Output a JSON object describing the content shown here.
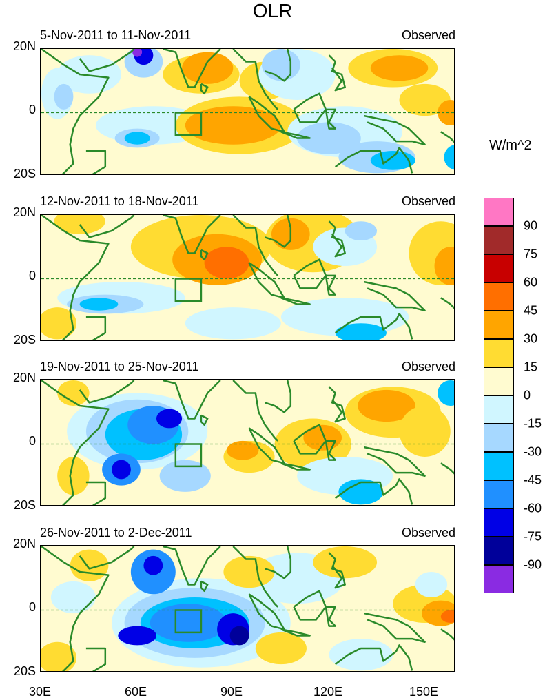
{
  "title": "OLR",
  "units": "W/m^2",
  "panels": [
    {
      "date_range": "5-Nov-2011 to 11-Nov-2011",
      "label": "Observed"
    },
    {
      "date_range": "12-Nov-2011 to 18-Nov-2011",
      "label": "Observed"
    },
    {
      "date_range": "19-Nov-2011 to 25-Nov-2011",
      "label": "Observed"
    },
    {
      "date_range": "26-Nov-2011 to 2-Dec-2011",
      "label": "Observed"
    }
  ],
  "y_ticks": [
    "20N",
    "0",
    "20S"
  ],
  "x_ticks": [
    "30E",
    "60E",
    "90E",
    "120E",
    "150E"
  ],
  "colorbar": {
    "colors": [
      "#ff77c4",
      "#a12a2a",
      "#c80000",
      "#ff6f00",
      "#ffa500",
      "#ffdc32",
      "#fffbd0",
      "#d0f6ff",
      "#a6d8ff",
      "#00c1ff",
      "#2090ff",
      "#0000e6",
      "#00009a",
      "#8a2be2"
    ],
    "labels": [
      "90",
      "75",
      "60",
      "45",
      "30",
      "15",
      "0",
      "-15",
      "-30",
      "-45",
      "-60",
      "-75",
      "-90"
    ]
  },
  "colors": {
    "coast": "#2a8a2a",
    "box": "#2a8a2a",
    "equator": "#2a8a2a"
  }
}
